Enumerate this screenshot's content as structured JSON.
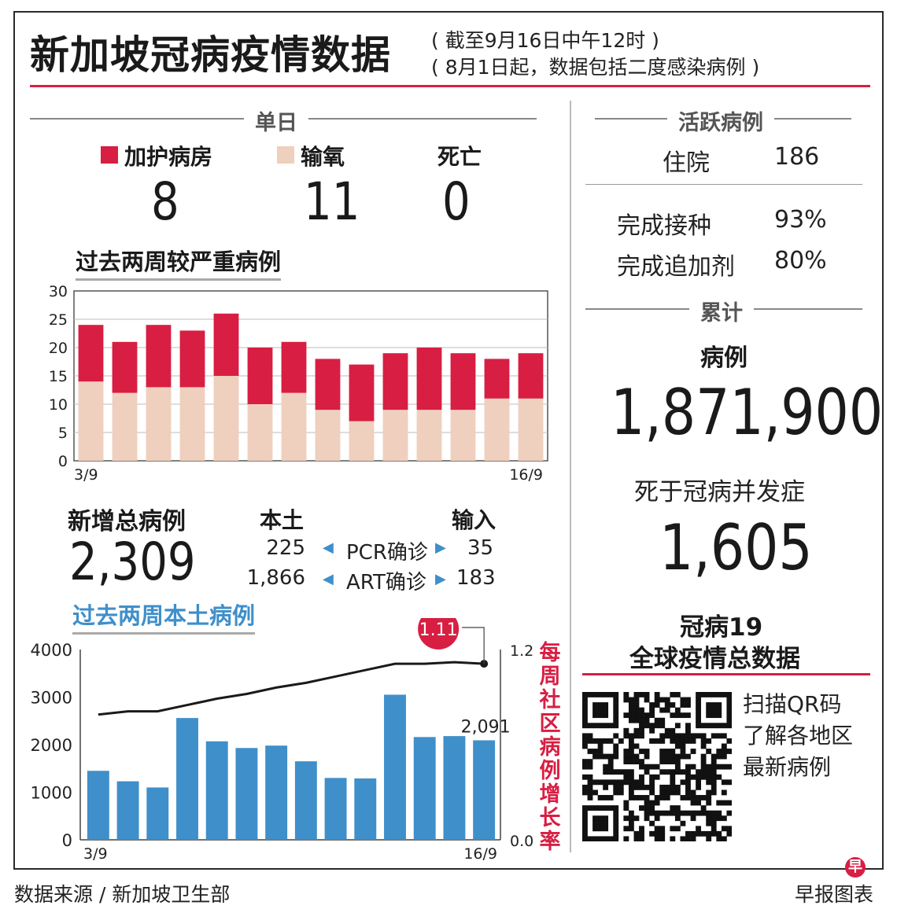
{
  "header": {
    "title": "新加坡冠病疫情数据",
    "note1": "( 截至9月16日中午12时 )",
    "note2": "( 8月1日起，数据包括二度感染病例 )"
  },
  "daily": {
    "heading": "单日",
    "icu_label": "加护病房",
    "icu_value": "8",
    "oxygen_label": "输氧",
    "oxygen_value": "11",
    "death_label": "死亡",
    "death_value": "0"
  },
  "severe_title": "过去两周较严重病例",
  "new_cases": {
    "label": "新增总病例",
    "value": "2,309",
    "local_label": "本土",
    "import_label": "输入",
    "pcr_label": "PCR确诊",
    "art_label": "ART确诊",
    "pcr_local": "225",
    "pcr_import": "35",
    "art_local": "1,866",
    "art_import": "183"
  },
  "local_title": "过去两周本土病例",
  "right_label": "每周社区病例增长率",
  "active": {
    "heading": "活跃病例",
    "hosp_label": "住院",
    "hosp_value": "186",
    "vacc_label": "完成接种",
    "vacc_value": "93%",
    "booster_label": "完成追加剂",
    "booster_value": "80%"
  },
  "cumulative": {
    "heading": "累计",
    "cases_label": "病例",
    "cases_value": "1,871,900",
    "deaths_label": "死于冠病并发症",
    "deaths_value": "1,605"
  },
  "global": {
    "title1": "冠病19",
    "title2": "全球疫情总数据",
    "qr1": "扫描QR码",
    "qr2": "了解各地区",
    "qr3": "最新病例"
  },
  "footer": {
    "source": "数据来源 / 新加坡卫生部",
    "brand": "早报图表",
    "brand_icon": "早"
  },
  "colors": {
    "icu": "#d81e43",
    "oxygen": "#efcfbd",
    "local_bar": "#3f8fca",
    "accent": "#d81e43",
    "blue_title": "#3f8fca"
  },
  "chart_data": [
    {
      "type": "bar",
      "title": "过去两周较严重病例",
      "stacked": true,
      "x_first_label": "3/9",
      "x_last_label": "16/9",
      "ylim": [
        0,
        30
      ],
      "yticks": [
        0,
        5,
        10,
        15,
        20,
        25,
        30
      ],
      "grid": true,
      "series": [
        {
          "name": "输氧",
          "values": [
            14,
            12,
            13,
            13,
            15,
            10,
            12,
            9,
            7,
            9,
            9,
            9,
            11,
            11
          ]
        },
        {
          "name": "加护病房",
          "values": [
            10,
            9,
            11,
            10,
            11,
            10,
            9,
            9,
            10,
            10,
            11,
            10,
            7,
            8
          ]
        }
      ]
    },
    {
      "type": "bar",
      "title": "过去两周本土病例",
      "x_first_label": "3/9",
      "x_last_label": "16/9",
      "ylim": [
        0,
        4000
      ],
      "yticks": [
        0,
        1000,
        2000,
        3000,
        4000
      ],
      "values": [
        1450,
        1230,
        1100,
        2560,
        2070,
        1930,
        1980,
        1650,
        1300,
        1290,
        3050,
        2160,
        2180,
        2091
      ],
      "last_value_label": "2,091",
      "line": {
        "axis": "right",
        "ylim": [
          0.0,
          1.2
        ],
        "yticks_labels": [
          "0.0",
          "1.2"
        ],
        "values": [
          0.79,
          0.81,
          0.81,
          0.85,
          0.89,
          0.92,
          0.96,
          0.99,
          1.03,
          1.07,
          1.11,
          1.11,
          1.12,
          1.11
        ],
        "last_value_label": "1.11"
      }
    }
  ]
}
